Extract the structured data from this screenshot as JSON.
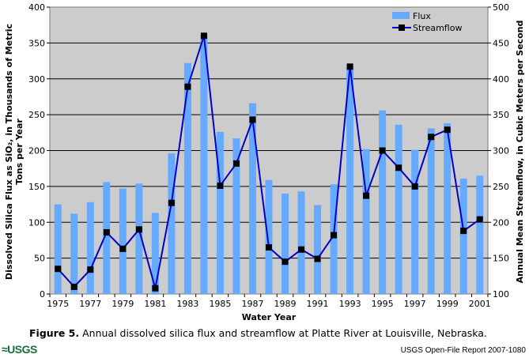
{
  "chart_data": {
    "type": "bar",
    "title": "",
    "xlabel": "Water Year",
    "ylabel": "Dissolved Silica Flux as SiO₂, in Thousands of Metric Tons per Year",
    "ylabel_line1": "Dissolved Silica Flux as SiO₂, in Thousands of Metric",
    "ylabel_line2": "Tons per Year",
    "y2label": "Annual Mean Streamflow, in Cubic Meters per Second",
    "ylim": [
      0,
      400
    ],
    "y2lim": [
      100,
      500
    ],
    "yticks": [
      "0",
      "50",
      "100",
      "150",
      "200",
      "250",
      "300",
      "350",
      "400"
    ],
    "y2ticks": [
      "100",
      "150",
      "200",
      "250",
      "300",
      "350",
      "400",
      "450",
      "500"
    ],
    "categories": [
      "1975",
      "1976",
      "1977",
      "1978",
      "1979",
      "1980",
      "1981",
      "1982",
      "1983",
      "1984",
      "1985",
      "1986",
      "1987",
      "1988",
      "1989",
      "1990",
      "1991",
      "1992",
      "1993",
      "1994",
      "1995",
      "1996",
      "1997",
      "1998",
      "1999",
      "2000",
      "2001"
    ],
    "xtick_labels": [
      "1975",
      "1977",
      "1979",
      "1981",
      "1983",
      "1985",
      "1987",
      "1989",
      "1991",
      "1993",
      "1995",
      "1997",
      "1999",
      "2001"
    ],
    "series": [
      {
        "name": "Flux",
        "type": "bar",
        "axis": "left",
        "color": "#66aaff",
        "values": [
          125,
          112,
          128,
          156,
          147,
          154,
          113,
          196,
          322,
          361,
          226,
          217,
          266,
          159,
          140,
          143,
          124,
          153,
          317,
          202,
          256,
          236,
          201,
          231,
          238,
          161,
          165
        ]
      },
      {
        "name": "Streamflow",
        "type": "line",
        "axis": "right",
        "color": "#0000cc",
        "values": [
          135,
          110,
          134,
          186,
          163,
          190,
          108,
          227,
          389,
          460,
          251,
          282,
          343,
          165,
          145,
          162,
          149,
          182,
          417,
          237,
          300,
          276,
          250,
          319,
          329,
          188,
          204
        ]
      }
    ],
    "legend": "top-right",
    "grid": true
  },
  "caption": {
    "label": "Figure 5.",
    "text": " Annual dissolved silica flux and streamflow at Platte River at Louisville, Nebraska."
  },
  "footer": {
    "logo": "≈USGS",
    "report": "USGS Open-File Report 2007-1080"
  }
}
